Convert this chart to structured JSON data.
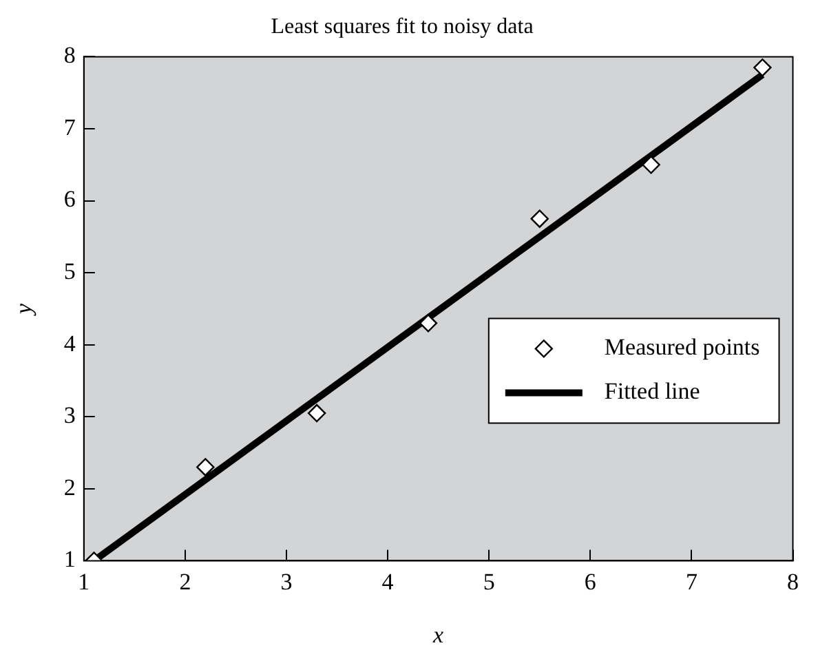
{
  "chart_data": {
    "type": "scatter",
    "title": "Least squares fit to noisy data",
    "xlabel": "x",
    "ylabel": "y",
    "xlim": [
      1,
      8
    ],
    "ylim": [
      1,
      8
    ],
    "xticks": [
      1,
      2,
      3,
      4,
      5,
      6,
      7,
      8
    ],
    "yticks": [
      1,
      2,
      3,
      4,
      5,
      6,
      7,
      8
    ],
    "grid": false,
    "legend": "bottom right",
    "series": [
      {
        "name": "Measured points",
        "marker": "diamond",
        "color": "#000000",
        "x": [
          1.1,
          2.2,
          3.3,
          4.4,
          5.5,
          6.6,
          7.7
        ],
        "values": [
          1.0,
          2.3,
          3.05,
          4.3,
          5.75,
          6.5,
          7.85
        ]
      },
      {
        "name": "Fitted line",
        "type": "line",
        "marker": "none",
        "line_style": "solid",
        "color": "#000000",
        "x": [
          1.1,
          7.7
        ],
        "values": [
          1.0,
          7.75
        ]
      }
    ]
  }
}
